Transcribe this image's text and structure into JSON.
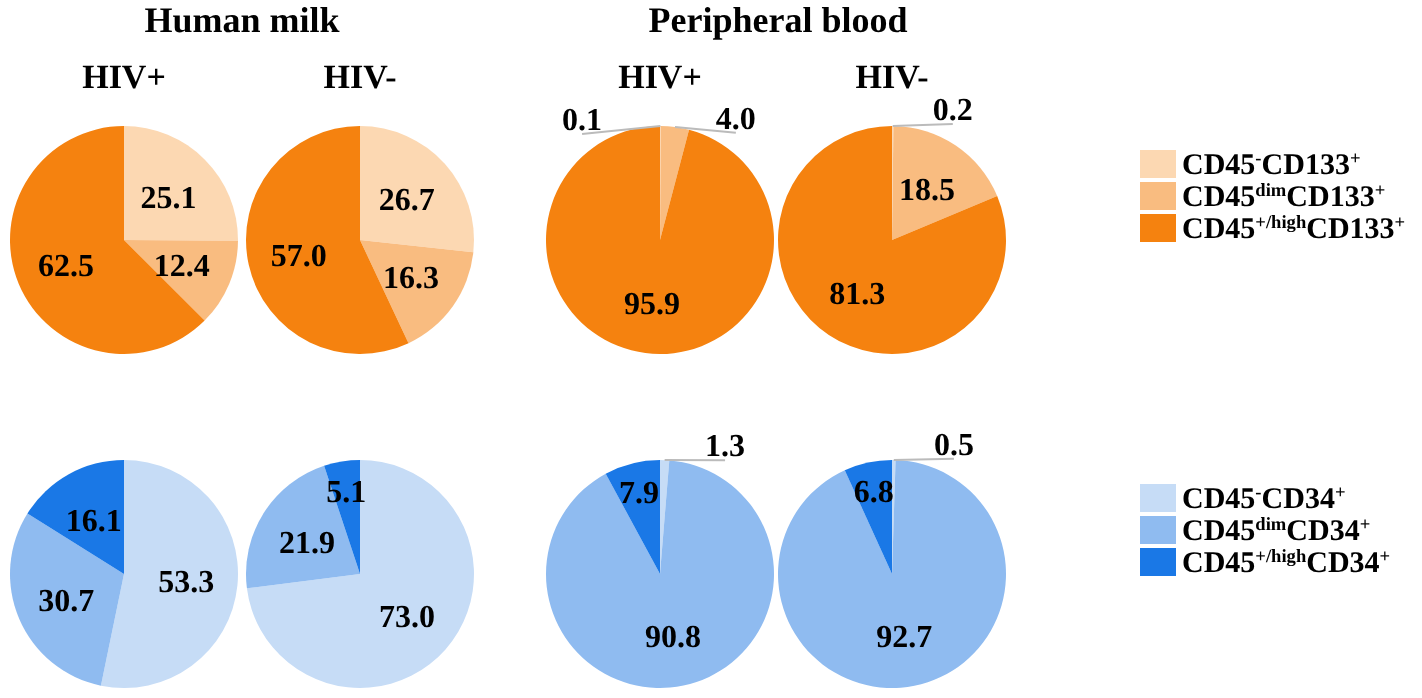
{
  "chart_data": [
    {
      "type": "pie",
      "subtitle": "Human milk",
      "title": "HIV+",
      "categories": [
        null,
        null,
        null
      ],
      "values": [
        25.1,
        12.4,
        62.5
      ],
      "value_labels": [
        "25.1",
        "12.4",
        "62.5"
      ],
      "colors": [
        "#fcd8b2",
        "#f9bc80",
        "#f5820f"
      ],
      "legend": false
    },
    {
      "type": "pie",
      "title": "HIV-",
      "categories": [
        null,
        null,
        null
      ],
      "values": [
        26.7,
        16.3,
        57.0
      ],
      "value_labels": [
        "26.7",
        "16.3",
        "57.0"
      ],
      "colors": [
        "#fcd8b2",
        "#f9bc80",
        "#f5820f"
      ],
      "legend": false
    },
    {
      "type": "pie",
      "subtitle": "Peripheral blood",
      "title": "HIV+",
      "categories": [
        null,
        null,
        null
      ],
      "values": [
        0.1,
        4.0,
        95.9
      ],
      "value_labels": [
        "0.1",
        "4.0",
        "95.9"
      ],
      "colors": [
        "#fcd8b2",
        "#f9bc80",
        "#f5820f"
      ],
      "legend": false
    },
    {
      "type": "pie",
      "title": "HIV-",
      "categories": [
        "CD45$^{-}$CD133$^{+}$",
        "CD45$^{dim}$CD133$^{+}$",
        "CD45$^{+/high}$CD133$^{+}$"
      ],
      "values": [
        0.2,
        18.5,
        81.3
      ],
      "value_labels": [
        "0.2",
        "18.5",
        "81.3"
      ],
      "colors": [
        "#fcd8b2",
        "#f9bc80",
        "#f5820f"
      ],
      "legend": "right"
    },
    {
      "type": "pie",
      "categories": [
        null,
        null,
        null
      ],
      "values": [
        53.3,
        30.7,
        16.1
      ],
      "value_labels": [
        "53.3",
        "30.7",
        "16.1"
      ],
      "colors": [
        "#c6dcf6",
        "#8fbbf0",
        "#1a78e6"
      ],
      "legend": false
    },
    {
      "type": "pie",
      "categories": [
        null,
        null,
        null
      ],
      "values": [
        73.0,
        21.9,
        5.1
      ],
      "value_labels": [
        "73.0",
        "21.9",
        "5.1"
      ],
      "colors": [
        "#c6dcf6",
        "#8fbbf0",
        "#1a78e6"
      ],
      "legend": false
    },
    {
      "type": "pie",
      "categories": [
        null,
        null,
        null
      ],
      "values": [
        1.3,
        90.8,
        7.9
      ],
      "value_labels": [
        "1.3",
        "90.8",
        "7.9"
      ],
      "colors": [
        "#c6dcf6",
        "#8fbbf0",
        "#1a78e6"
      ],
      "legend": false
    },
    {
      "type": "pie",
      "categories": [
        "CD45$^{-}$CD34$^{+}$",
        "CD45$^{dim}$CD34$^{+}$",
        "CD45$^{+/high}$CD34$^{+}$"
      ],
      "values": [
        0.5,
        92.7,
        6.8
      ],
      "value_labels": [
        "0.5",
        "92.7",
        "6.8"
      ],
      "colors": [
        "#c6dcf6",
        "#8fbbf0",
        "#1a78e6"
      ],
      "legend": "right"
    }
  ]
}
